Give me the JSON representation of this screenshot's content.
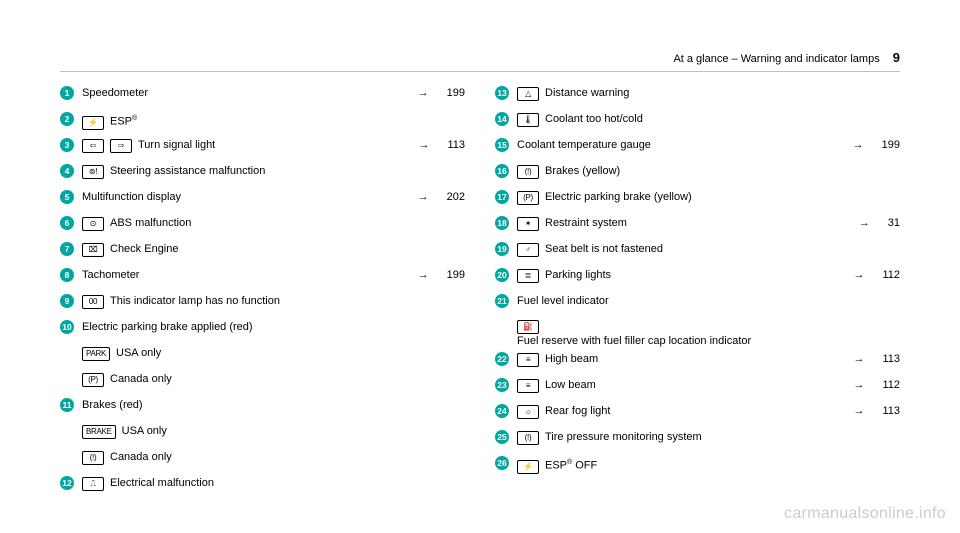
{
  "header": {
    "section": "At a glance – Warning and indicator lamps",
    "page_number": "9"
  },
  "watermark": "carmanualsonline.info",
  "colors": {
    "bullet_bg": "#00a7a0",
    "bullet_fg": "#ffffff",
    "text": "#000000",
    "rule": "#c0c0c0",
    "watermark": "#cccccc"
  },
  "left": [
    {
      "n": "1",
      "icons": [],
      "text": "Speedometer",
      "ref": "199"
    },
    {
      "n": "2",
      "icons": [
        "⚡"
      ],
      "text": "ESP",
      "sup": "®"
    },
    {
      "n": "3",
      "icons": [
        "⇦",
        "⇨"
      ],
      "text": "Turn signal light",
      "ref": "113"
    },
    {
      "n": "4",
      "icons": [
        "⊚!"
      ],
      "text": "Steering assistance malfunction"
    },
    {
      "n": "5",
      "icons": [],
      "text": "Multifunction display",
      "ref": "202"
    },
    {
      "n": "6",
      "icons": [
        "⊙"
      ],
      "text": "ABS malfunction"
    },
    {
      "n": "7",
      "icons": [
        "⌧"
      ],
      "text": "Check Engine"
    },
    {
      "n": "8",
      "icons": [],
      "text": "Tachometer",
      "ref": "199"
    },
    {
      "n": "9",
      "icons": [
        "00"
      ],
      "text": "This indicator lamp has no function"
    },
    {
      "n": "10",
      "icons": [],
      "text": "Electric parking brake applied (red)"
    },
    {
      "icons": [
        "PARK"
      ],
      "text": "USA only",
      "indent": true
    },
    {
      "icons": [
        "(P)"
      ],
      "text": "Canada only",
      "indent": true
    },
    {
      "n": "11",
      "icons": [],
      "text": "Brakes (red)"
    },
    {
      "icons": [
        "BRAKE"
      ],
      "text": "USA only",
      "indent": true
    },
    {
      "icons": [
        "(!)"
      ],
      "text": "Canada only",
      "indent": true
    },
    {
      "n": "12",
      "icons": [
        "⎍"
      ],
      "text": "Electrical malfunction"
    }
  ],
  "right": [
    {
      "n": "13",
      "icons": [
        "△"
      ],
      "text": "Distance warning"
    },
    {
      "n": "14",
      "icons": [
        "🌡"
      ],
      "text": "Coolant too hot/cold"
    },
    {
      "n": "15",
      "icons": [],
      "text": "Coolant temperature gauge",
      "ref": "199"
    },
    {
      "n": "16",
      "icons": [
        "(!)"
      ],
      "text": "Brakes (yellow)"
    },
    {
      "n": "17",
      "icons": [
        "(P)"
      ],
      "text": "Electric parking brake (yellow)"
    },
    {
      "n": "18",
      "icons": [
        "✶"
      ],
      "text": "Restraint system",
      "ref": "31"
    },
    {
      "n": "19",
      "icons": [
        "♂"
      ],
      "text": "Seat belt is not fastened"
    },
    {
      "n": "20",
      "icons": [
        "≣"
      ],
      "text": "Parking lights",
      "ref": "112"
    },
    {
      "n": "21",
      "icons": [],
      "text": "Fuel level indicator"
    },
    {
      "icons": [
        "⛽"
      ],
      "text": "Fuel reserve with fuel filler cap location indicator",
      "indent": true,
      "wrap": true
    },
    {
      "n": "22",
      "icons": [
        "≡"
      ],
      "text": "High beam",
      "ref": "113"
    },
    {
      "n": "23",
      "icons": [
        "≡"
      ],
      "text": "Low beam",
      "ref": "112"
    },
    {
      "n": "24",
      "icons": [
        "☼"
      ],
      "text": "Rear fog light",
      "ref": "113"
    },
    {
      "n": "25",
      "icons": [
        "(!)"
      ],
      "text": "Tire pressure monitoring system"
    },
    {
      "n": "26",
      "icons": [
        "⚡"
      ],
      "text": "ESP",
      "sup": "®",
      "suffix": " OFF"
    }
  ]
}
